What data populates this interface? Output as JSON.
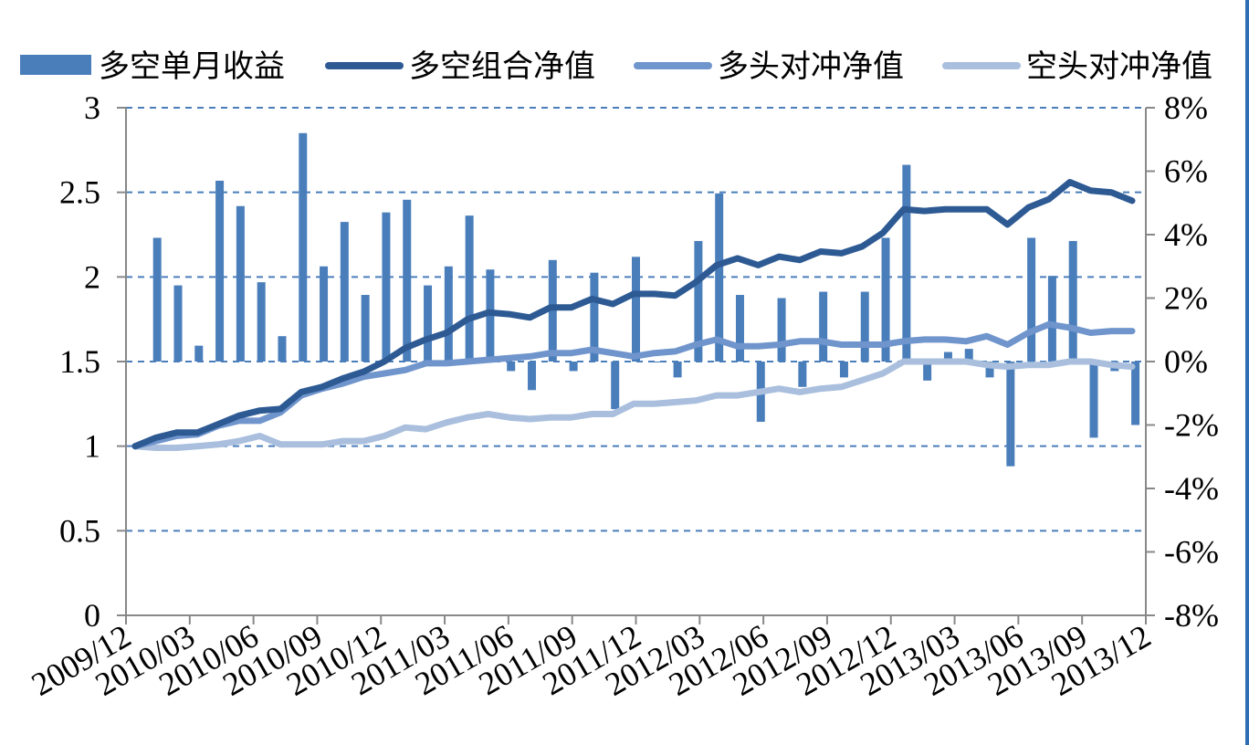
{
  "chart_data": {
    "type": "bar+line",
    "title": "",
    "xlabel": "",
    "ylabel": "",
    "y_left": {
      "ylim": [
        0,
        3
      ],
      "ticks": [
        "0",
        "0.5",
        "1",
        "1.5",
        "2",
        "2.5",
        "3"
      ]
    },
    "y_right": {
      "ylim": [
        -8,
        8
      ],
      "ticks": [
        "-8%",
        "-6%",
        "-4%",
        "-2%",
        "0%",
        "2%",
        "4%",
        "6%",
        "8%"
      ]
    },
    "x_tick_labels": [
      "2009/12",
      "2010/03",
      "2010/06",
      "2010/09",
      "2010/12",
      "2011/03",
      "2011/06",
      "2011/09",
      "2011/12",
      "2012/03",
      "2012/06",
      "2012/09",
      "2012/12",
      "2013/03",
      "2013/06",
      "2013/09",
      "2013/12"
    ],
    "grid": "dashed horizontal",
    "legend_position": "top",
    "colors": {
      "bars": "#4a7ebb",
      "long_short": "#2e5a94",
      "long_hedge": "#7095cc",
      "short_hedge": "#a9bfdd",
      "grid": "#4a7ebb"
    },
    "series": [
      {
        "name": "多空单月收益",
        "type": "bar",
        "axis": "right",
        "values": [
          3.9,
          2.4,
          0.5,
          5.7,
          4.9,
          2.5,
          0.8,
          7.2,
          3.0,
          4.4,
          2.1,
          4.7,
          5.1,
          2.4,
          3.0,
          4.6,
          2.9,
          -0.3,
          -0.9,
          3.2,
          -0.3,
          2.8,
          -1.5,
          3.3,
          0.0,
          -0.5,
          3.8,
          5.3,
          2.1,
          -1.9,
          2.0,
          -0.8,
          2.2,
          -0.5,
          2.2,
          3.9,
          6.2,
          -0.6,
          0.3,
          0.4,
          -0.5,
          -3.3,
          3.9,
          2.7,
          3.8,
          -2.4,
          -0.3,
          -2.0
        ]
      },
      {
        "name": "多空组合净值",
        "type": "line",
        "axis": "left",
        "values": [
          1.0,
          1.05,
          1.08,
          1.08,
          1.13,
          1.18,
          1.21,
          1.22,
          1.32,
          1.35,
          1.4,
          1.44,
          1.5,
          1.58,
          1.63,
          1.67,
          1.75,
          1.79,
          1.78,
          1.76,
          1.82,
          1.82,
          1.87,
          1.84,
          1.9,
          1.9,
          1.89,
          1.97,
          2.07,
          2.11,
          2.07,
          2.12,
          2.1,
          2.15,
          2.14,
          2.18,
          2.26,
          2.4,
          2.39,
          2.4,
          2.4,
          2.4,
          2.31,
          2.41,
          2.46,
          2.56,
          2.51,
          2.5,
          2.45
        ]
      },
      {
        "name": "多头对冲净值",
        "type": "line",
        "axis": "left",
        "values": [
          1.0,
          1.03,
          1.06,
          1.07,
          1.12,
          1.15,
          1.15,
          1.2,
          1.3,
          1.34,
          1.37,
          1.41,
          1.43,
          1.45,
          1.49,
          1.49,
          1.5,
          1.51,
          1.52,
          1.53,
          1.55,
          1.55,
          1.57,
          1.55,
          1.53,
          1.55,
          1.56,
          1.6,
          1.63,
          1.59,
          1.59,
          1.6,
          1.62,
          1.62,
          1.6,
          1.6,
          1.6,
          1.62,
          1.63,
          1.63,
          1.62,
          1.65,
          1.6,
          1.67,
          1.72,
          1.7,
          1.67,
          1.68,
          1.68
        ]
      },
      {
        "name": "空头对冲净值",
        "type": "line",
        "axis": "left",
        "values": [
          1.0,
          0.99,
          0.99,
          1.0,
          1.01,
          1.03,
          1.06,
          1.01,
          1.01,
          1.01,
          1.03,
          1.03,
          1.06,
          1.11,
          1.1,
          1.14,
          1.17,
          1.19,
          1.17,
          1.16,
          1.17,
          1.17,
          1.19,
          1.19,
          1.25,
          1.25,
          1.26,
          1.27,
          1.3,
          1.3,
          1.32,
          1.34,
          1.32,
          1.34,
          1.35,
          1.39,
          1.43,
          1.5,
          1.5,
          1.5,
          1.5,
          1.48,
          1.47,
          1.48,
          1.48,
          1.5,
          1.5,
          1.48,
          1.47
        ]
      }
    ]
  }
}
